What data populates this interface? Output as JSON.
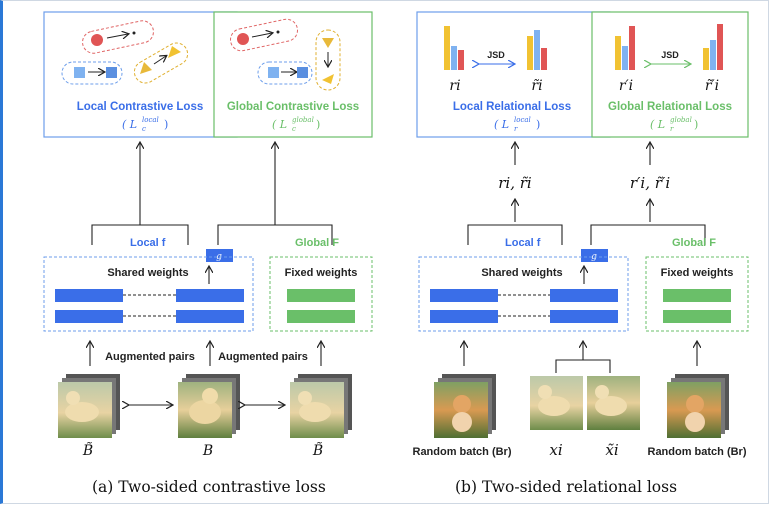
{
  "colors": {
    "blue": "#3a6ee8",
    "green": "#6abf69",
    "red": "#e05555",
    "yellow": "#f1c232",
    "lightblue": "#7fb2f0",
    "dark": "#222222",
    "dash_red": "#e06666",
    "dash_blue": "#6d9eeb",
    "dash_yellow": "#e0b030"
  },
  "left_panel": {
    "local_box_title": "Local Contrastive Loss",
    "local_box_formula": "( L",
    "local_box_sub": "c",
    "local_box_sup": "local",
    "local_box_close": ")",
    "global_box_title": "Global Contrastive Loss",
    "global_box_formula": "( L",
    "global_box_sub": "c",
    "global_box_sup": "global",
    "global_box_close": ")",
    "local_label": "Local f",
    "global_label": "Global F",
    "shared_weights": "Shared weights",
    "fixed_weights": "Fixed weights",
    "g_label": "g",
    "augmented_pairs_1": "Augmented pairs",
    "augmented_pairs_2": "Augmented pairs",
    "b_tilde_left": "B̃",
    "b_center": "B",
    "b_tilde_right": "B̃",
    "caption": "(a) Two-sided contrastive loss"
  },
  "right_panel": {
    "local_box_title": "Local Relational Loss",
    "local_box_formula": "( L",
    "local_box_sub": "r",
    "local_box_sup": "local",
    "local_box_close": ")",
    "global_box_title": "Global Relational Loss",
    "global_box_formula": "( L",
    "global_box_sub": "r",
    "global_box_sup": "global",
    "global_box_close": ")",
    "jsd_label_1": "JSD",
    "jsd_label_2": "JSD",
    "r_i": "ri",
    "r_i_tilde": "r̃i",
    "r_i_prime": "r′i",
    "r_i_prime_tilde": "r̃′i",
    "mid_label_local": "ri, r̃i",
    "mid_label_global": "r′i, r̃′i",
    "local_label": "Local f",
    "global_label": "Global F",
    "shared_weights": "Shared weights",
    "fixed_weights": "Fixed weights",
    "g_label": "g",
    "random_batch_left": "Random batch (Br)",
    "random_batch_right": "Random batch (Br)",
    "x_i": "xi",
    "x_i_tilde": "x̃i",
    "caption": "(b) Two-sided relational loss"
  }
}
